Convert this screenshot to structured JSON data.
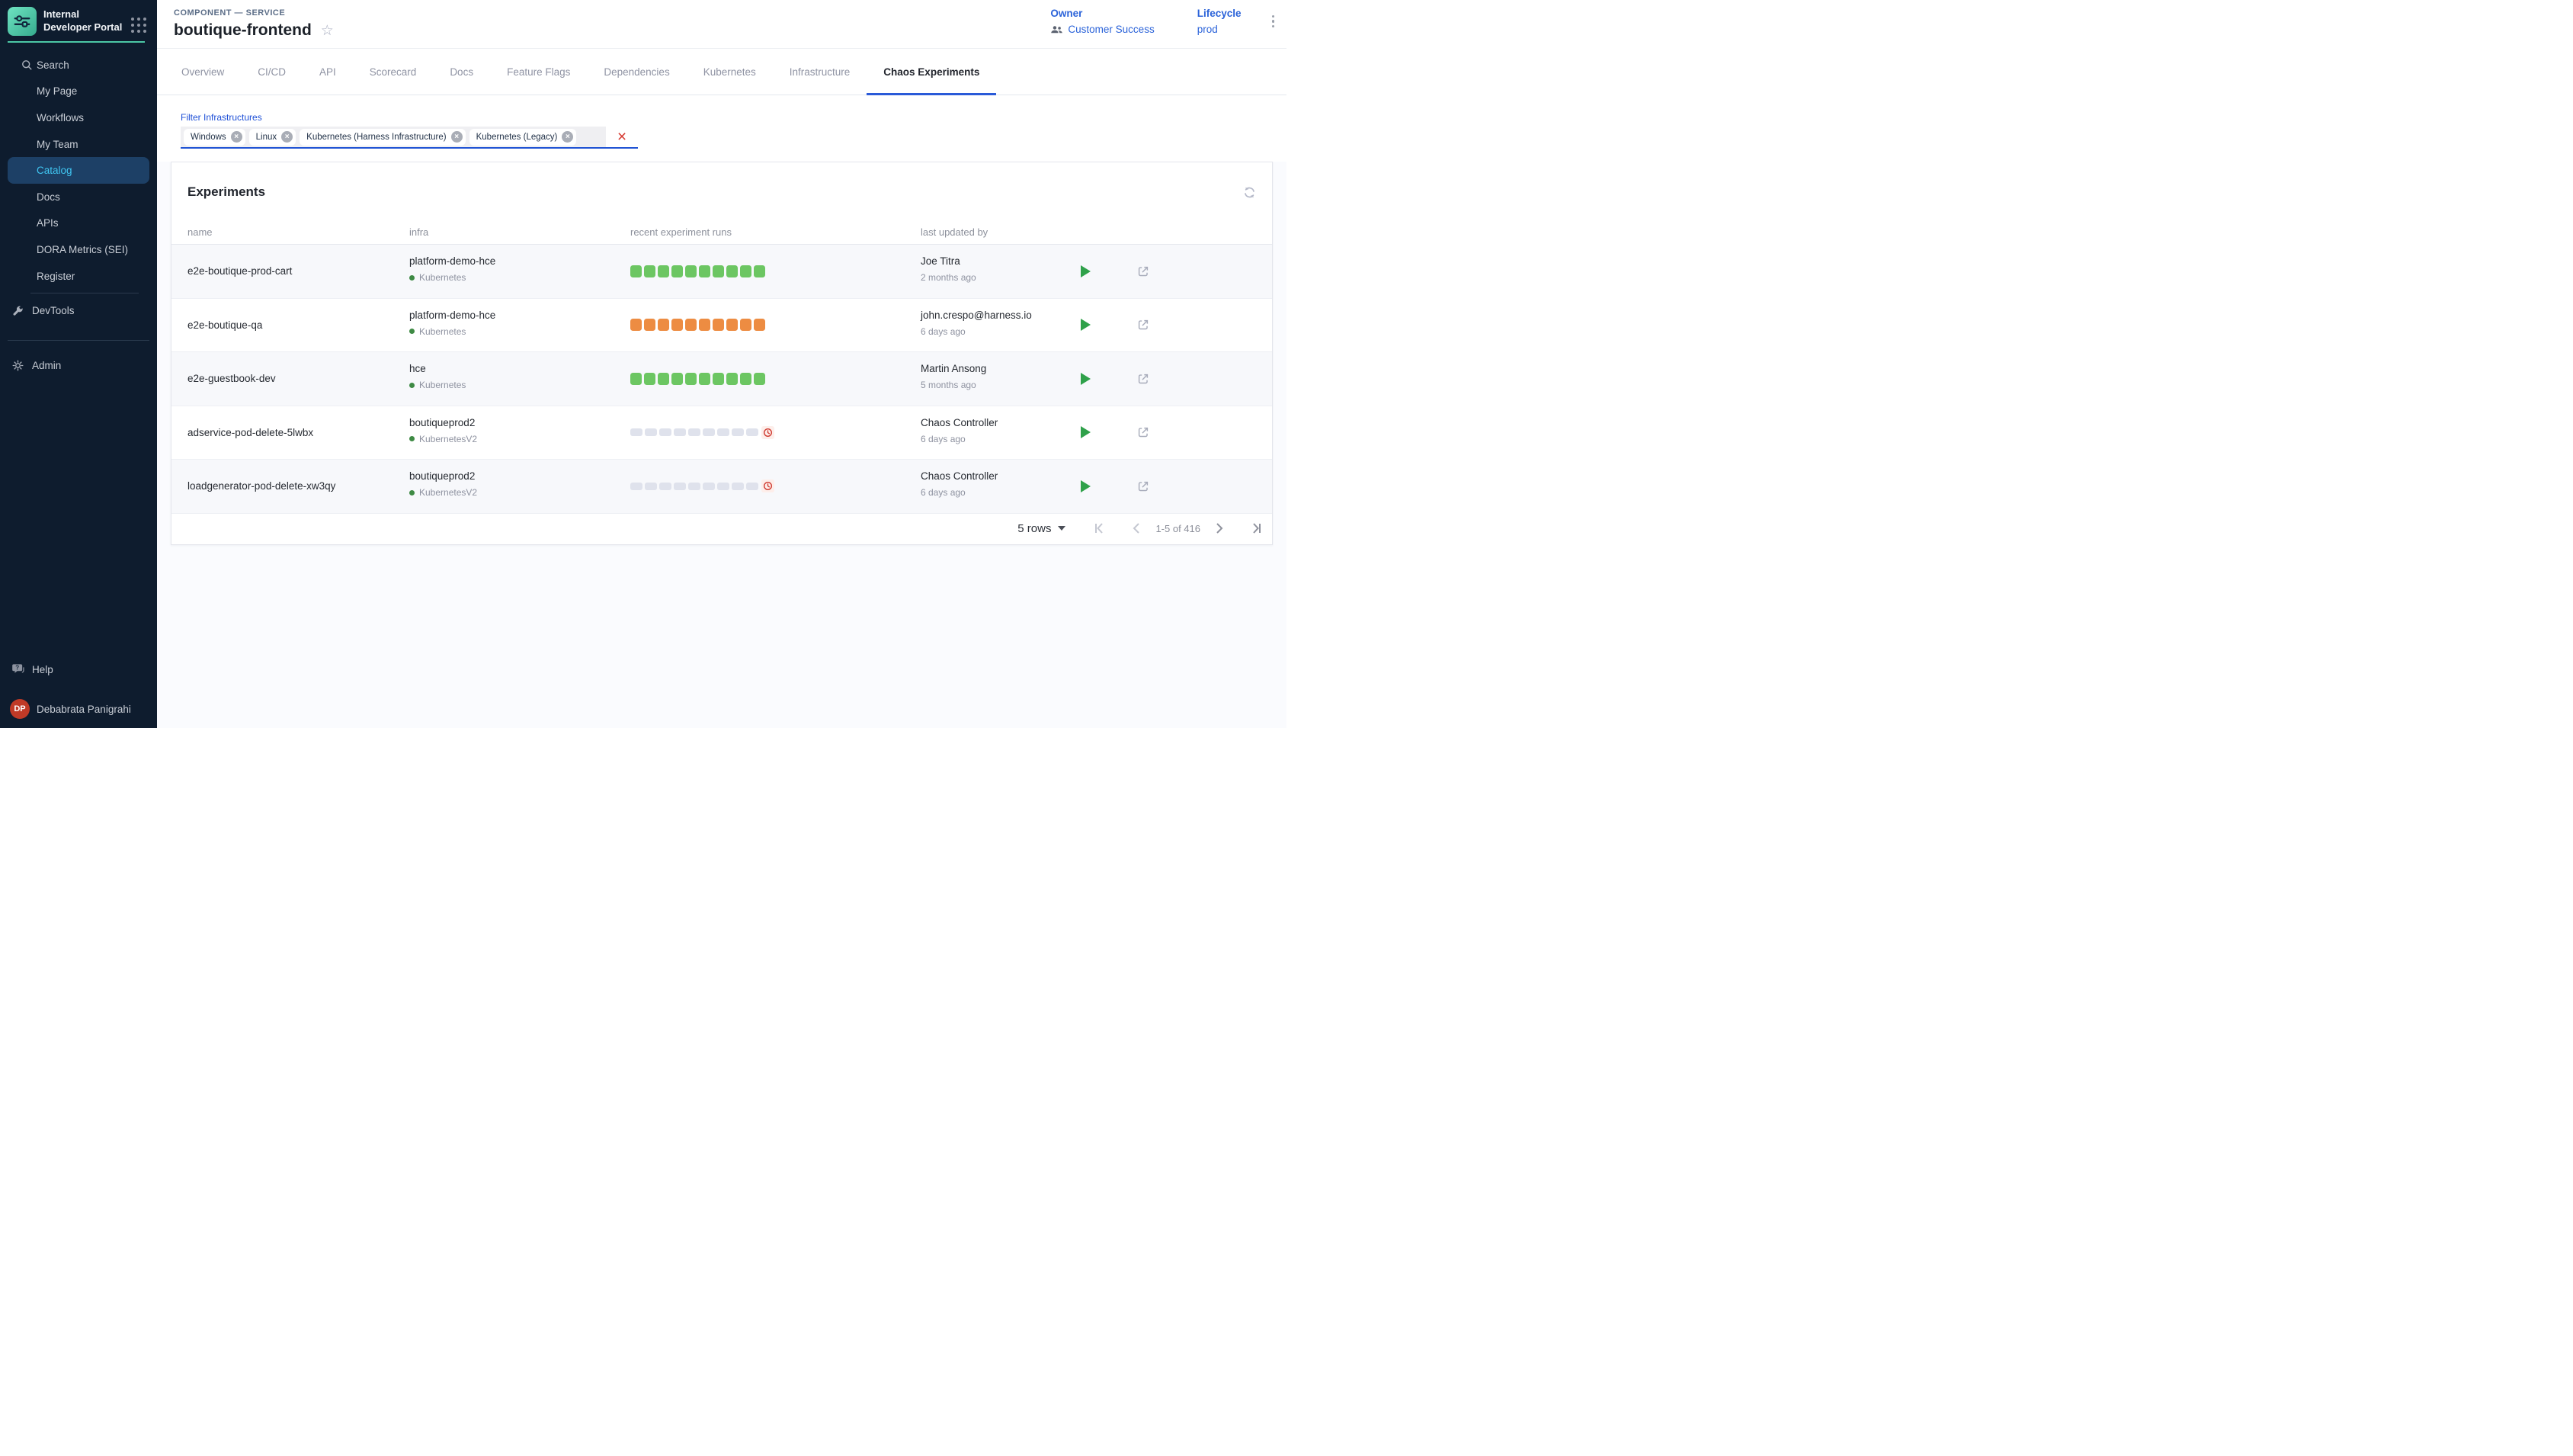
{
  "sidebar": {
    "app_title": "Internal Developer Portal",
    "items": [
      {
        "label": "Search",
        "icon": "search",
        "active": false
      },
      {
        "label": "My Page",
        "active": false
      },
      {
        "label": "Workflows",
        "active": false
      },
      {
        "label": "My Team",
        "active": false
      },
      {
        "label": "Catalog",
        "active": true
      },
      {
        "label": "Docs",
        "active": false
      },
      {
        "label": "APIs",
        "active": false
      },
      {
        "label": "DORA Metrics (SEI)",
        "active": false
      },
      {
        "label": "Register",
        "active": false
      }
    ],
    "devtools_label": "DevTools",
    "admin_label": "Admin",
    "help_label": "Help",
    "user": {
      "initials": "DP",
      "name": "Debabrata Panigrahi"
    }
  },
  "header": {
    "kicker": "COMPONENT — SERVICE",
    "title": "boutique-frontend",
    "owner_label": "Owner",
    "owner_value": "Customer Success",
    "lifecycle_label": "Lifecycle",
    "lifecycle_value": "prod"
  },
  "tabs": [
    {
      "label": "Overview",
      "active": false
    },
    {
      "label": "CI/CD",
      "active": false
    },
    {
      "label": "API",
      "active": false
    },
    {
      "label": "Scorecard",
      "active": false
    },
    {
      "label": "Docs",
      "active": false
    },
    {
      "label": "Feature Flags",
      "active": false
    },
    {
      "label": "Dependencies",
      "active": false
    },
    {
      "label": "Kubernetes",
      "active": false
    },
    {
      "label": "Infrastructure",
      "active": false
    },
    {
      "label": "Chaos Experiments",
      "active": true
    }
  ],
  "filter": {
    "label": "Filter Infrastructures",
    "chips": [
      "Windows",
      "Linux",
      "Kubernetes (Harness Infrastructure)",
      "Kubernetes (Legacy)"
    ]
  },
  "experiments": {
    "title": "Experiments",
    "columns": [
      "name",
      "infra",
      "recent experiment runs",
      "last updated by"
    ],
    "rows": [
      {
        "name": "e2e-boutique-prod-cart",
        "infra": "platform-demo-hce",
        "infra_type": "Kubernetes",
        "runs_status": "passed",
        "runs_count": 10,
        "runs_pending": false,
        "updated_by": "Joe Titra",
        "updated_at": "2 months ago"
      },
      {
        "name": "e2e-boutique-qa",
        "infra": "platform-demo-hce",
        "infra_type": "Kubernetes",
        "runs_status": "failed",
        "runs_count": 10,
        "runs_pending": false,
        "updated_by": "john.crespo@harness.io",
        "updated_at": "6 days ago"
      },
      {
        "name": "e2e-guestbook-dev",
        "infra": "hce",
        "infra_type": "Kubernetes",
        "runs_status": "passed",
        "runs_count": 10,
        "runs_pending": false,
        "updated_by": "Martin Ansong",
        "updated_at": "5 months ago"
      },
      {
        "name": "adservice-pod-delete-5lwbx",
        "infra": "boutiqueprod2",
        "infra_type": "KubernetesV2",
        "runs_status": "empty",
        "runs_count": 9,
        "runs_pending": true,
        "updated_by": "Chaos Controller",
        "updated_at": "6 days ago"
      },
      {
        "name": "loadgenerator-pod-delete-xw3qy",
        "infra": "boutiqueprod2",
        "infra_type": "KubernetesV2",
        "runs_status": "empty",
        "runs_count": 9,
        "runs_pending": true,
        "updated_by": "Chaos Controller",
        "updated_at": "6 days ago"
      }
    ]
  },
  "pagination": {
    "rows_per_page": "5 rows",
    "range": "1-5 of 416"
  },
  "colors": {
    "sidebar_bg": "#0e1c2e",
    "sidebar_active_bg": "#1d4066",
    "sidebar_active_text": "#40c6f2",
    "brand_teal": "#4cc7a5",
    "accent_blue": "#2a5ad8",
    "link_blue": "#2b63d9",
    "run_passed": "#6cc662",
    "run_failed": "#ed8c42",
    "run_empty": "#dfe2ec",
    "pending_red": "#cf3a30",
    "avatar_red": "#c03a27",
    "play_green": "#2fa14a"
  }
}
